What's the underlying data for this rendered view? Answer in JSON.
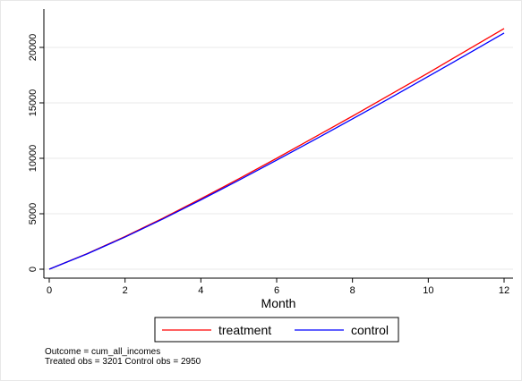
{
  "chart_data": {
    "type": "line",
    "title": "",
    "xlabel": "Month",
    "ylabel": "",
    "xlim": [
      0,
      12
    ],
    "ylim": [
      0,
      22000
    ],
    "x_ticks": [
      0,
      2,
      4,
      6,
      8,
      10,
      12
    ],
    "y_ticks": [
      0,
      5000,
      10000,
      15000,
      20000
    ],
    "grid": true,
    "legend_position": "bottom",
    "x": [
      0,
      1,
      2,
      3,
      4,
      5,
      6,
      7,
      8,
      9,
      10,
      11,
      12
    ],
    "series": [
      {
        "name": "treatment",
        "color": "#ff0000",
        "values": [
          0,
          1400,
          2950,
          4600,
          6350,
          8150,
          10000,
          11900,
          13800,
          15750,
          17700,
          19700,
          21700
        ]
      },
      {
        "name": "control",
        "color": "#0000ff",
        "values": [
          0,
          1380,
          2900,
          4530,
          6250,
          8020,
          9830,
          11680,
          13550,
          15450,
          17380,
          19330,
          21300
        ]
      }
    ]
  },
  "notes": {
    "line1": "Outcome = cum_all_incomes",
    "line2": "Treated obs = 3201 Control obs = 2950"
  }
}
